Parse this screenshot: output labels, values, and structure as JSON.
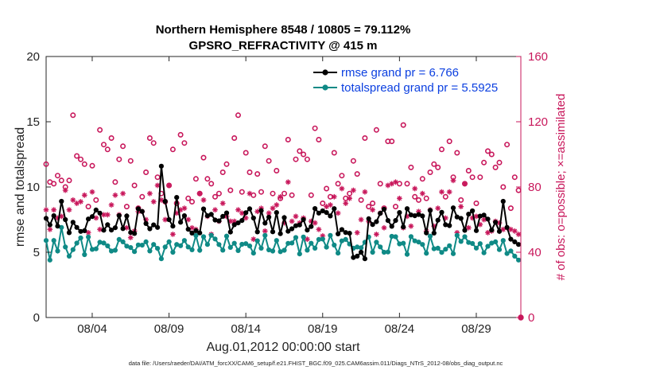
{
  "chart_data": {
    "type": "line",
    "title": "Northern Hemisphere 8548 / 10805 = 79.112%",
    "subtitle": "GPSRO_REFRACTIVITY @ 415 m",
    "xlabel": "Aug.01,2012 00:00:00 start",
    "ylabel": "rmse and totalspread",
    "y2label": "# of obs: o=possible; ×=assimilated",
    "footer": "data file: /Users/raeder/DAI/ATM_forcXX/CAM6_setup/f.e21.FHIST_BGC.f09_025.CAM6assim.011/Diags_NTrS_2012-08/obs_diag_output.nc",
    "xlim": [
      1.0,
      31.9
    ],
    "ylim": [
      0,
      20
    ],
    "y2lim": [
      0,
      160
    ],
    "xticks": [
      {
        "value": 4,
        "label": "08/04"
      },
      {
        "value": 9,
        "label": "08/09"
      },
      {
        "value": 14,
        "label": "08/14"
      },
      {
        "value": 19,
        "label": "08/19"
      },
      {
        "value": 24,
        "label": "08/24"
      },
      {
        "value": 29,
        "label": "08/29"
      }
    ],
    "yticks": [
      {
        "value": 0,
        "label": "0"
      },
      {
        "value": 5,
        "label": "5"
      },
      {
        "value": 10,
        "label": "10"
      },
      {
        "value": 15,
        "label": "15"
      },
      {
        "value": 20,
        "label": "20"
      }
    ],
    "y2ticks": [
      {
        "value": 0,
        "label": "0"
      },
      {
        "value": 40,
        "label": "40"
      },
      {
        "value": 80,
        "label": "80"
      },
      {
        "value": 120,
        "label": "120"
      },
      {
        "value": 160,
        "label": "160"
      }
    ],
    "legend": [
      {
        "name": "rmse grand pr = 6.766",
        "color": "#000000"
      },
      {
        "name": "totalspread grand pr = 5.5925",
        "color": "#0f8a86"
      }
    ],
    "colors": {
      "rmse": "#000000",
      "spread": "#0f8a86",
      "obs": "#c8175b"
    },
    "rmse_start": [
      7.6,
      7.1,
      7.8,
      7.0,
      8.9,
      7.5,
      6.5,
      7.3,
      6.9,
      6.6
    ],
    "spread_start": [
      5.9,
      4.4,
      5.9,
      5.1,
      6.9,
      5.4,
      4.7,
      5.2,
      5.7,
      6.1
    ],
    "rmse_mid": [
      7.2,
      6.8,
      7.1,
      6.9,
      11.6,
      8.9,
      7.5,
      7.0,
      9.2,
      7.3,
      7.8
    ],
    "spread_mid": [
      5.8,
      5.1,
      5.6,
      5.3,
      4.5,
      5.4,
      5.8,
      5.0,
      5.6,
      5.5,
      5.9
    ],
    "rmse_end": [
      6.7,
      7.3,
      6.6,
      8.9,
      6.9,
      6.0,
      5.8,
      5.6
    ],
    "spread_end": [
      5.7,
      5.8,
      5.2,
      5.9,
      4.9,
      5.1,
      4.7,
      4.4
    ],
    "possible_start": [
      94,
      83,
      82,
      87,
      84,
      80,
      84,
      124,
      99,
      97
    ],
    "assimilated_start": [
      66,
      54,
      66,
      61,
      62,
      78,
      66,
      72,
      70,
      71
    ],
    "possible_end": [
      70,
      86,
      95,
      102,
      100,
      92,
      95,
      80,
      106,
      67,
      86,
      78
    ],
    "assimilated_end": [
      62,
      57,
      60,
      52,
      53,
      59,
      58,
      54,
      55,
      54,
      53,
      51
    ]
  }
}
